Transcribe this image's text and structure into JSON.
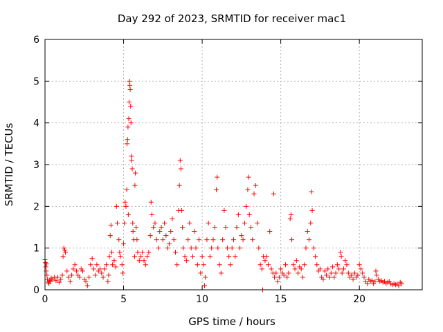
{
  "chart_data": {
    "type": "scatter",
    "title": "Day 292 of 2023, SRMTID for receiver mac1",
    "xlabel": "GPS time / hours",
    "ylabel": "SRMTID / TECUs",
    "xlim": [
      0,
      24
    ],
    "ylim": [
      0,
      6
    ],
    "xticks": [
      0,
      5,
      10,
      15,
      20
    ],
    "yticks": [
      0,
      1,
      2,
      3,
      4,
      5,
      6
    ],
    "xtick_labels": [
      "0",
      "5",
      "10",
      "15",
      "20"
    ],
    "ytick_labels": [
      "0",
      "1",
      "2",
      "3",
      "4",
      "5",
      "6"
    ],
    "grid": true,
    "marker": "plus",
    "marker_color": "#ff0000",
    "series": [
      {
        "name": "mac1",
        "points": [
          [
            0.0,
            0.72
          ],
          [
            0.02,
            0.65
          ],
          [
            0.05,
            0.55
          ],
          [
            0.08,
            0.45
          ],
          [
            0.1,
            0.62
          ],
          [
            0.12,
            0.35
          ],
          [
            0.15,
            0.25
          ],
          [
            0.2,
            0.18
          ],
          [
            0.25,
            0.15
          ],
          [
            0.3,
            0.22
          ],
          [
            0.35,
            0.2
          ],
          [
            0.4,
            0.28
          ],
          [
            0.5,
            0.25
          ],
          [
            0.6,
            0.3
          ],
          [
            0.7,
            0.22
          ],
          [
            0.8,
            0.3
          ],
          [
            0.9,
            0.18
          ],
          [
            1.0,
            0.25
          ],
          [
            1.1,
            0.35
          ],
          [
            1.15,
            0.8
          ],
          [
            1.2,
            1.0
          ],
          [
            1.25,
            0.95
          ],
          [
            1.3,
            0.9
          ],
          [
            1.4,
            0.45
          ],
          [
            1.5,
            0.3
          ],
          [
            1.6,
            0.2
          ],
          [
            1.7,
            0.35
          ],
          [
            1.8,
            0.5
          ],
          [
            1.9,
            0.6
          ],
          [
            2.0,
            0.45
          ],
          [
            2.1,
            0.35
          ],
          [
            2.2,
            0.3
          ],
          [
            2.3,
            0.5
          ],
          [
            2.4,
            0.45
          ],
          [
            2.5,
            0.25
          ],
          [
            2.6,
            0.2
          ],
          [
            2.7,
            0.1
          ],
          [
            2.8,
            0.3
          ],
          [
            2.9,
            0.6
          ],
          [
            3.0,
            0.75
          ],
          [
            3.1,
            0.5
          ],
          [
            3.2,
            0.35
          ],
          [
            3.3,
            0.6
          ],
          [
            3.4,
            0.45
          ],
          [
            3.5,
            0.5
          ],
          [
            3.6,
            0.4
          ],
          [
            3.7,
            0.3
          ],
          [
            3.8,
            0.5
          ],
          [
            3.9,
            0.6
          ],
          [
            4.0,
            0.2
          ],
          [
            4.05,
            0.35
          ],
          [
            4.1,
            0.8
          ],
          [
            4.15,
            1.3
          ],
          [
            4.2,
            1.55
          ],
          [
            4.25,
            0.9
          ],
          [
            4.3,
            0.6
          ],
          [
            4.4,
            0.7
          ],
          [
            4.5,
            0.55
          ],
          [
            4.55,
            2.0
          ],
          [
            4.6,
            1.6
          ],
          [
            4.7,
            1.2
          ],
          [
            4.75,
            0.9
          ],
          [
            4.8,
            0.8
          ],
          [
            4.9,
            0.6
          ],
          [
            4.95,
            0.4
          ],
          [
            5.0,
            1.1
          ],
          [
            5.05,
            1.6
          ],
          [
            5.1,
            2.1
          ],
          [
            5.15,
            2.0
          ],
          [
            5.2,
            2.4
          ],
          [
            5.22,
            3.5
          ],
          [
            5.25,
            3.6
          ],
          [
            5.28,
            3.9
          ],
          [
            5.3,
            1.8
          ],
          [
            5.33,
            4.1
          ],
          [
            5.35,
            4.5
          ],
          [
            5.37,
            5.0
          ],
          [
            5.4,
            4.9
          ],
          [
            5.42,
            4.8
          ],
          [
            5.45,
            4.4
          ],
          [
            5.47,
            4.0
          ],
          [
            5.5,
            3.2
          ],
          [
            5.52,
            3.1
          ],
          [
            5.55,
            2.9
          ],
          [
            5.58,
            1.6
          ],
          [
            5.6,
            1.4
          ],
          [
            5.65,
            1.2
          ],
          [
            5.7,
            0.8
          ],
          [
            5.72,
            2.5
          ],
          [
            5.75,
            2.8
          ],
          [
            5.8,
            1.5
          ],
          [
            5.85,
            1.2
          ],
          [
            5.9,
            0.9
          ],
          [
            6.0,
            0.7
          ],
          [
            6.1,
            0.8
          ],
          [
            6.2,
            0.9
          ],
          [
            6.3,
            0.7
          ],
          [
            6.4,
            0.6
          ],
          [
            6.5,
            0.8
          ],
          [
            6.6,
            0.9
          ],
          [
            6.7,
            1.3
          ],
          [
            6.75,
            2.1
          ],
          [
            6.8,
            1.8
          ],
          [
            6.9,
            1.5
          ],
          [
            7.0,
            1.6
          ],
          [
            7.1,
            1.2
          ],
          [
            7.2,
            1.0
          ],
          [
            7.3,
            1.4
          ],
          [
            7.4,
            1.5
          ],
          [
            7.5,
            1.2
          ],
          [
            7.6,
            1.6
          ],
          [
            7.7,
            1.3
          ],
          [
            7.8,
            1.0
          ],
          [
            7.9,
            1.1
          ],
          [
            8.0,
            1.4
          ],
          [
            8.1,
            1.7
          ],
          [
            8.2,
            1.2
          ],
          [
            8.3,
            0.9
          ],
          [
            8.4,
            0.6
          ],
          [
            8.5,
            1.9
          ],
          [
            8.55,
            2.5
          ],
          [
            8.6,
            3.1
          ],
          [
            8.65,
            2.9
          ],
          [
            8.7,
            1.9
          ],
          [
            8.75,
            1.5
          ],
          [
            8.8,
            1.0
          ],
          [
            8.9,
            0.8
          ],
          [
            9.0,
            0.7
          ],
          [
            9.1,
            1.2
          ],
          [
            9.2,
            1.6
          ],
          [
            9.3,
            1.0
          ],
          [
            9.4,
            0.8
          ],
          [
            9.5,
            1.4
          ],
          [
            9.6,
            1.0
          ],
          [
            9.7,
            0.6
          ],
          [
            9.8,
            1.2
          ],
          [
            9.9,
            0.4
          ],
          [
            10.0,
            0.8
          ],
          [
            10.1,
            0.6
          ],
          [
            10.15,
            0.1
          ],
          [
            10.2,
            0.3
          ],
          [
            10.3,
            1.2
          ],
          [
            10.4,
            1.6
          ],
          [
            10.5,
            0.8
          ],
          [
            10.6,
            1.0
          ],
          [
            10.7,
            1.2
          ],
          [
            10.8,
            1.5
          ],
          [
            10.9,
            2.4
          ],
          [
            10.95,
            2.7
          ],
          [
            11.0,
            1.0
          ],
          [
            11.1,
            0.6
          ],
          [
            11.2,
            0.4
          ],
          [
            11.3,
            1.2
          ],
          [
            11.4,
            1.9
          ],
          [
            11.5,
            1.5
          ],
          [
            11.6,
            1.0
          ],
          [
            11.7,
            0.8
          ],
          [
            11.8,
            0.6
          ],
          [
            11.9,
            1.0
          ],
          [
            12.0,
            1.2
          ],
          [
            12.1,
            0.8
          ],
          [
            12.2,
            1.5
          ],
          [
            12.3,
            1.8
          ],
          [
            12.4,
            1.0
          ],
          [
            12.5,
            1.3
          ],
          [
            12.6,
            1.2
          ],
          [
            12.7,
            1.6
          ],
          [
            12.8,
            2.0
          ],
          [
            12.9,
            2.4
          ],
          [
            12.95,
            2.7
          ],
          [
            13.0,
            1.8
          ],
          [
            13.1,
            1.5
          ],
          [
            13.2,
            1.2
          ],
          [
            13.3,
            2.3
          ],
          [
            13.4,
            2.5
          ],
          [
            13.5,
            1.6
          ],
          [
            13.6,
            1.0
          ],
          [
            13.7,
            0.6
          ],
          [
            13.8,
            0.5
          ],
          [
            13.85,
            0.0
          ],
          [
            13.9,
            0.8
          ],
          [
            14.0,
            0.7
          ],
          [
            14.1,
            0.8
          ],
          [
            14.2,
            0.6
          ],
          [
            14.3,
            1.4
          ],
          [
            14.4,
            0.5
          ],
          [
            14.5,
            0.4
          ],
          [
            14.55,
            2.3
          ],
          [
            14.6,
            0.3
          ],
          [
            14.7,
            0.4
          ],
          [
            14.8,
            0.2
          ],
          [
            14.9,
            0.3
          ],
          [
            15.0,
            0.5
          ],
          [
            15.1,
            0.4
          ],
          [
            15.2,
            0.35
          ],
          [
            15.3,
            0.6
          ],
          [
            15.4,
            0.3
          ],
          [
            15.5,
            0.4
          ],
          [
            15.6,
            1.7
          ],
          [
            15.65,
            1.8
          ],
          [
            15.7,
            1.2
          ],
          [
            15.8,
            0.6
          ],
          [
            15.9,
            0.5
          ],
          [
            16.0,
            0.7
          ],
          [
            16.1,
            0.4
          ],
          [
            16.2,
            0.55
          ],
          [
            16.3,
            0.5
          ],
          [
            16.4,
            0.3
          ],
          [
            16.5,
            0.6
          ],
          [
            16.6,
            1.0
          ],
          [
            16.7,
            1.4
          ],
          [
            16.8,
            1.2
          ],
          [
            16.9,
            1.6
          ],
          [
            16.95,
            2.35
          ],
          [
            17.0,
            1.9
          ],
          [
            17.1,
            1.0
          ],
          [
            17.2,
            0.8
          ],
          [
            17.3,
            0.6
          ],
          [
            17.4,
            0.45
          ],
          [
            17.5,
            0.5
          ],
          [
            17.6,
            0.3
          ],
          [
            17.7,
            0.25
          ],
          [
            17.8,
            0.45
          ],
          [
            17.9,
            0.35
          ],
          [
            18.0,
            0.5
          ],
          [
            18.1,
            0.3
          ],
          [
            18.2,
            0.4
          ],
          [
            18.3,
            0.55
          ],
          [
            18.4,
            0.3
          ],
          [
            18.5,
            0.4
          ],
          [
            18.6,
            0.6
          ],
          [
            18.7,
            0.5
          ],
          [
            18.8,
            0.9
          ],
          [
            18.85,
            0.8
          ],
          [
            18.9,
            0.4
          ],
          [
            19.0,
            0.5
          ],
          [
            19.1,
            0.7
          ],
          [
            19.2,
            0.6
          ],
          [
            19.3,
            0.4
          ],
          [
            19.4,
            0.3
          ],
          [
            19.5,
            0.35
          ],
          [
            19.6,
            0.25
          ],
          [
            19.7,
            0.4
          ],
          [
            19.8,
            0.3
          ],
          [
            19.9,
            0.35
          ],
          [
            20.0,
            0.6
          ],
          [
            20.1,
            0.5
          ],
          [
            20.2,
            0.4
          ],
          [
            20.3,
            0.3
          ],
          [
            20.4,
            0.2
          ],
          [
            20.5,
            0.15
          ],
          [
            20.6,
            0.25
          ],
          [
            20.7,
            0.2
          ],
          [
            20.8,
            0.22
          ],
          [
            20.9,
            0.15
          ],
          [
            21.0,
            0.2
          ],
          [
            21.05,
            0.45
          ],
          [
            21.1,
            0.35
          ],
          [
            21.2,
            0.25
          ],
          [
            21.3,
            0.2
          ],
          [
            21.4,
            0.22
          ],
          [
            21.5,
            0.18
          ],
          [
            21.6,
            0.2
          ],
          [
            21.7,
            0.15
          ],
          [
            21.8,
            0.18
          ],
          [
            21.9,
            0.2
          ],
          [
            22.0,
            0.15
          ],
          [
            22.1,
            0.12
          ],
          [
            22.2,
            0.15
          ],
          [
            22.3,
            0.12
          ],
          [
            22.4,
            0.14
          ],
          [
            22.5,
            0.1
          ],
          [
            22.6,
            0.18
          ],
          [
            22.7,
            0.15
          ]
        ]
      }
    ]
  }
}
